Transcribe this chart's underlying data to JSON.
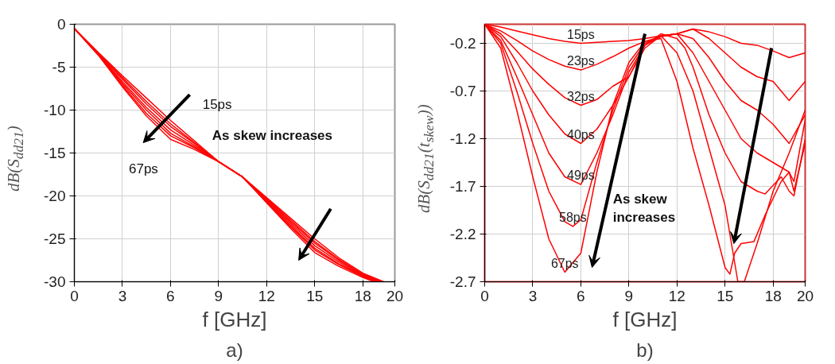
{
  "chart_data": [
    {
      "type": "line",
      "title": "a)",
      "xlabel": "f [GHz]",
      "ylabel": "dB(S$_{dd21}$)",
      "xlim": [
        0,
        20
      ],
      "ylim": [
        -30,
        0
      ],
      "xticks": [
        0,
        3,
        6,
        9,
        12,
        15,
        18,
        20
      ],
      "yticks": [
        0,
        -5,
        -10,
        -15,
        -20,
        -25,
        -30
      ],
      "grid": true,
      "annotations": [
        "15ps",
        "As skew increases",
        "67ps"
      ],
      "series": [
        {
          "color": "#ff0000",
          "x": [
            0,
            1.5,
            3,
            4.5,
            6,
            7.5,
            9,
            10.5,
            12,
            13.5,
            15,
            16.5,
            18,
            19.3
          ],
          "values": [
            -0.5,
            -3.3,
            -6,
            -8.6,
            -11.2,
            -13.6,
            -16,
            -17.8,
            -20.2,
            -22.6,
            -25,
            -27.2,
            -29,
            -30
          ]
        },
        {
          "color": "#ff0000",
          "x": [
            0,
            1.5,
            3,
            4.5,
            6,
            7.5,
            9,
            10.5,
            12,
            13.5,
            15,
            16.5,
            18,
            19.2
          ],
          "values": [
            -0.5,
            -3.4,
            -6.2,
            -9.0,
            -11.6,
            -13.8,
            -16,
            -17.8,
            -20.3,
            -22.8,
            -25.3,
            -27.4,
            -29.1,
            -30
          ]
        },
        {
          "color": "#ff0000",
          "x": [
            0,
            1.5,
            3,
            4.5,
            6,
            7.5,
            9,
            10.5,
            12,
            13.5,
            15,
            16.5,
            18,
            19.1
          ],
          "values": [
            -0.5,
            -3.4,
            -6.4,
            -9.3,
            -11.9,
            -13.9,
            -16,
            -17.8,
            -20.4,
            -23.0,
            -25.5,
            -27.5,
            -29.2,
            -30
          ]
        },
        {
          "color": "#ff0000",
          "x": [
            0,
            1.5,
            3,
            4.5,
            6,
            7.5,
            9,
            10.5,
            12,
            13.5,
            15,
            16.5,
            18,
            19.0
          ],
          "values": [
            -0.5,
            -3.5,
            -6.7,
            -9.7,
            -12.3,
            -14.1,
            -16,
            -17.8,
            -20.5,
            -23.2,
            -25.8,
            -27.7,
            -29.3,
            -30
          ]
        },
        {
          "color": "#ff0000",
          "x": [
            0,
            1.5,
            3,
            4.5,
            6,
            7.5,
            9,
            10.5,
            12,
            13.5,
            15,
            16.5,
            18,
            18.9
          ],
          "values": [
            -0.5,
            -3.5,
            -6.9,
            -10.0,
            -12.7,
            -14.3,
            -16,
            -17.8,
            -20.6,
            -23.4,
            -26.1,
            -27.9,
            -29.3,
            -30
          ]
        },
        {
          "color": "#ff0000",
          "x": [
            0,
            1.5,
            3,
            4.5,
            6,
            7.5,
            9,
            10.5,
            12,
            13.5,
            15,
            16.5,
            18,
            18.8
          ],
          "values": [
            -0.5,
            -3.6,
            -7.1,
            -10.4,
            -13.0,
            -14.4,
            -16,
            -17.8,
            -20.7,
            -23.6,
            -26.3,
            -28.0,
            -29.4,
            -30
          ]
        },
        {
          "color": "#ff0000",
          "x": [
            0,
            1.5,
            3,
            4.5,
            6,
            7.5,
            9,
            10.5,
            12,
            13.5,
            15,
            16.5,
            18,
            18.7
          ],
          "values": [
            -0.5,
            -3.6,
            -7.3,
            -10.7,
            -13.4,
            -14.6,
            -16,
            -17.8,
            -20.8,
            -23.8,
            -26.6,
            -28.2,
            -29.5,
            -30
          ]
        }
      ]
    },
    {
      "type": "line",
      "title": "b)",
      "xlabel": "f [GHz]",
      "ylabel": "dB(S$_{dd21}$(t$_{skew}$))",
      "xlim": [
        0,
        20
      ],
      "ylim": [
        -2.7,
        0
      ],
      "xticks": [
        0,
        3,
        6,
        9,
        12,
        15,
        18,
        20
      ],
      "yticks": [
        -0.2,
        -0.7,
        -1.2,
        -1.7,
        -2.2,
        -2.7
      ],
      "grid": true,
      "annotations": [
        "As skew increases"
      ],
      "series": [
        {
          "name": "15ps",
          "color": "#ff0000",
          "x": [
            0,
            1,
            2,
            3,
            4,
            5,
            6,
            7,
            8,
            9,
            10,
            11,
            12,
            13,
            14,
            15,
            16,
            17,
            18,
            19,
            20
          ],
          "values": [
            0,
            -0.03,
            -0.07,
            -0.11,
            -0.15,
            -0.18,
            -0.2,
            -0.19,
            -0.18,
            -0.17,
            -0.15,
            -0.12,
            -0.1,
            -0.05,
            -0.08,
            -0.13,
            -0.2,
            -0.22,
            -0.28,
            -0.35,
            -0.3
          ]
        },
        {
          "name": "23ps",
          "color": "#ff0000",
          "x": [
            0,
            1,
            2,
            3,
            4,
            5,
            6,
            7,
            8,
            9,
            10,
            11,
            12,
            13,
            14,
            15,
            16,
            17,
            18,
            19,
            20
          ],
          "values": [
            0,
            -0.07,
            -0.17,
            -0.28,
            -0.37,
            -0.44,
            -0.48,
            -0.42,
            -0.34,
            -0.25,
            -0.18,
            -0.13,
            -0.1,
            -0.05,
            -0.15,
            -0.3,
            -0.45,
            -0.55,
            -0.6,
            -0.8,
            -0.6
          ]
        },
        {
          "name": "32ps",
          "color": "#ff0000",
          "x": [
            0,
            1,
            2,
            3,
            4,
            5,
            6,
            7,
            8,
            9,
            10,
            11,
            12,
            13,
            14,
            15,
            16,
            17,
            18,
            19,
            20
          ],
          "values": [
            0,
            -0.1,
            -0.28,
            -0.47,
            -0.63,
            -0.77,
            -0.85,
            -0.79,
            -0.65,
            -0.55,
            -0.22,
            -0.13,
            -0.1,
            -0.15,
            -0.35,
            -0.6,
            -0.8,
            -0.9,
            -1.05,
            -1.25,
            -0.95
          ]
        },
        {
          "name": "40ps",
          "color": "#ff0000",
          "x": [
            0,
            1,
            2,
            3,
            4,
            5,
            6,
            7,
            8,
            9,
            10,
            11,
            12,
            13,
            14,
            15,
            16,
            17,
            18,
            19,
            19.3,
            20
          ],
          "values": [
            0,
            -0.13,
            -0.4,
            -0.7,
            -0.95,
            -1.15,
            -1.25,
            -1.1,
            -0.85,
            -0.55,
            -0.25,
            -0.12,
            -0.1,
            -0.3,
            -0.6,
            -0.9,
            -1.2,
            -1.35,
            -1.45,
            -1.55,
            -1.65,
            -1.0
          ]
        },
        {
          "name": "49ps",
          "color": "#ff0000",
          "x": [
            0,
            1,
            2,
            3,
            4,
            5,
            6,
            7,
            8,
            9,
            10,
            11,
            12,
            12.5,
            13,
            14,
            15,
            16,
            17,
            17.5,
            18.5,
            19,
            19.3,
            20
          ],
          "values": [
            0,
            -0.17,
            -0.55,
            -0.95,
            -1.35,
            -1.6,
            -1.68,
            -1.35,
            -0.95,
            -0.5,
            -0.22,
            -0.1,
            -0.15,
            -0.25,
            -0.45,
            -0.95,
            -1.35,
            -1.65,
            -1.75,
            -1.78,
            -1.6,
            -1.75,
            -1.8,
            -1.2
          ]
        },
        {
          "name": "58ps",
          "color": "#ff0000",
          "x": [
            0,
            1,
            2,
            3,
            4,
            5,
            5.5,
            6,
            7,
            8,
            9,
            10,
            11,
            12,
            13,
            14,
            15,
            15.8,
            16.2,
            17,
            18,
            19,
            20
          ],
          "values": [
            0,
            -0.2,
            -0.7,
            -1.25,
            -1.75,
            -2.07,
            -2.12,
            -2.05,
            -1.45,
            -0.9,
            -0.45,
            -0.2,
            -0.12,
            -0.3,
            -0.7,
            -1.3,
            -1.9,
            -2.7,
            -2.7,
            -2.3,
            -1.75,
            -1.35,
            -0.9
          ]
        },
        {
          "name": "67ps",
          "color": "#ff0000",
          "x": [
            0,
            1,
            2,
            3,
            4,
            5,
            6,
            7,
            8,
            9,
            10,
            11,
            12,
            13,
            14,
            15,
            15.3,
            15.6,
            16,
            16.8,
            17.5,
            18.5,
            19,
            19.3,
            20
          ],
          "values": [
            0,
            -0.25,
            -0.9,
            -1.6,
            -2.25,
            -2.6,
            -2.4,
            -1.55,
            -0.85,
            -0.4,
            -0.18,
            -0.15,
            -0.6,
            -1.3,
            -1.9,
            -2.55,
            -2.62,
            -2.4,
            -2.3,
            -2.28,
            -2.0,
            -1.65,
            -1.55,
            -1.75,
            -1.25
          ]
        }
      ]
    }
  ]
}
